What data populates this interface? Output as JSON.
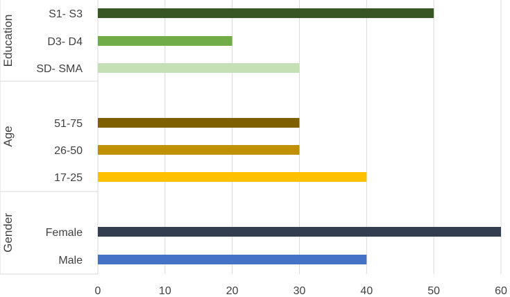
{
  "chart_data": {
    "type": "bar",
    "orientation": "horizontal",
    "title": "",
    "xlabel": "",
    "ylabel": "",
    "xlim": [
      0,
      60
    ],
    "x_ticks": [
      0,
      10,
      20,
      30,
      40,
      50,
      60
    ],
    "grid": "vertical",
    "legend": "none",
    "groups": [
      {
        "name": "Education",
        "bars": [
          {
            "label": "S1- S3",
            "value": 50,
            "color": "#375623"
          },
          {
            "label": "D3- D4",
            "value": 20,
            "color": "#70AD47"
          },
          {
            "label": "SD- SMA",
            "value": 30,
            "color": "#C5E0B4"
          }
        ]
      },
      {
        "name": "Age",
        "bars": [
          {
            "label": "51-75",
            "value": 30,
            "color": "#7F6000"
          },
          {
            "label": "26-50",
            "value": 30,
            "color": "#BF9000"
          },
          {
            "label": "17-25",
            "value": 40,
            "color": "#FFC000"
          }
        ]
      },
      {
        "name": "Gender",
        "bars": [
          {
            "label": "Female",
            "value": 60,
            "color": "#333F50"
          },
          {
            "label": "Male",
            "value": 40,
            "color": "#4472C4"
          }
        ]
      }
    ]
  }
}
